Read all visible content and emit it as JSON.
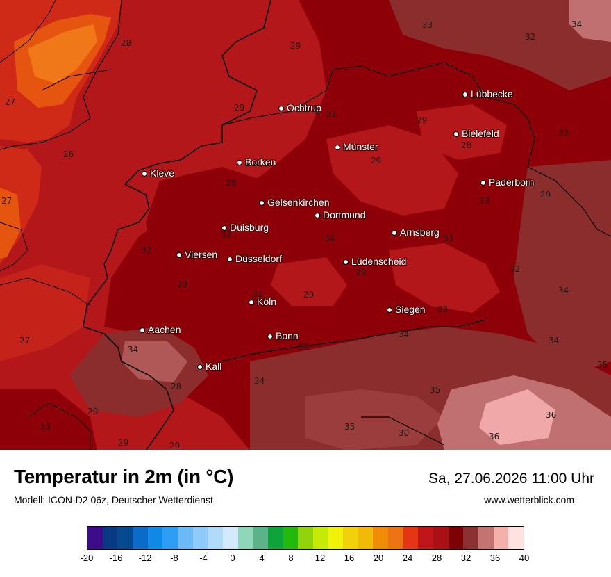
{
  "header": {
    "title": "Temperatur in 2m (in °C)",
    "model": "Modell: ICON-D2 06z, Deutscher Wetterdienst",
    "datetime": "Sa, 27.06.2026 11:00 Uhr",
    "website": "www.wetterblick.com"
  },
  "map": {
    "cities": [
      "Ochtrup",
      "Lübbecke",
      "Bielefeld",
      "Münster",
      "Borken",
      "Kleve",
      "Paderborn",
      "Gelsenkirchen",
      "Dortmund",
      "Duisburg",
      "Arnsberg",
      "Viersen",
      "Düsseldorf",
      "Lüdenscheid",
      "Köln",
      "Siegen",
      "Aachen",
      "Bonn",
      "Kall"
    ],
    "isotherm_labels": [
      "28",
      "29",
      "33",
      "32",
      "34",
      "27",
      "29",
      "31",
      "29",
      "33",
      "26",
      "28",
      "29",
      "28",
      "33",
      "29",
      "27",
      "33",
      "32",
      "34",
      "32",
      "33",
      "29",
      "29",
      "34",
      "31",
      "29",
      "33",
      "34",
      "27",
      "34",
      "29",
      "34",
      "28",
      "34",
      "35",
      "29",
      "35",
      "36",
      "33",
      "29",
      "29",
      "35",
      "30",
      "36"
    ],
    "colors": {
      "range_24": "#e53515",
      "range_28": "#b41318",
      "range_30": "#8e0008",
      "range_32": "#8b2a2a",
      "range_34": "#c07070",
      "range_36": "#f4b0b0"
    }
  },
  "colorbar": {
    "colors": [
      "#3d0c8a",
      "#073a82",
      "#05498f",
      "#0a6cc8",
      "#0f88e6",
      "#2d9df5",
      "#6cb9f8",
      "#8ecbfb",
      "#b2daf9",
      "#d4e9fb",
      "#8fd7b8",
      "#5cb38a",
      "#0ea439",
      "#22b90f",
      "#93d30b",
      "#c4ea05",
      "#f1f20a",
      "#f2d00b",
      "#f2ba08",
      "#f08c08",
      "#ee7315",
      "#e53515",
      "#c0151b",
      "#aa1015",
      "#7c0006",
      "#8b3134",
      "#c27372",
      "#f4b1ac",
      "#fde2e0"
    ],
    "ticks": [
      "-20",
      "-16",
      "-12",
      "-8",
      "-4",
      "0",
      "4",
      "8",
      "12",
      "16",
      "20",
      "24",
      "28",
      "32",
      "36",
      "40"
    ]
  }
}
